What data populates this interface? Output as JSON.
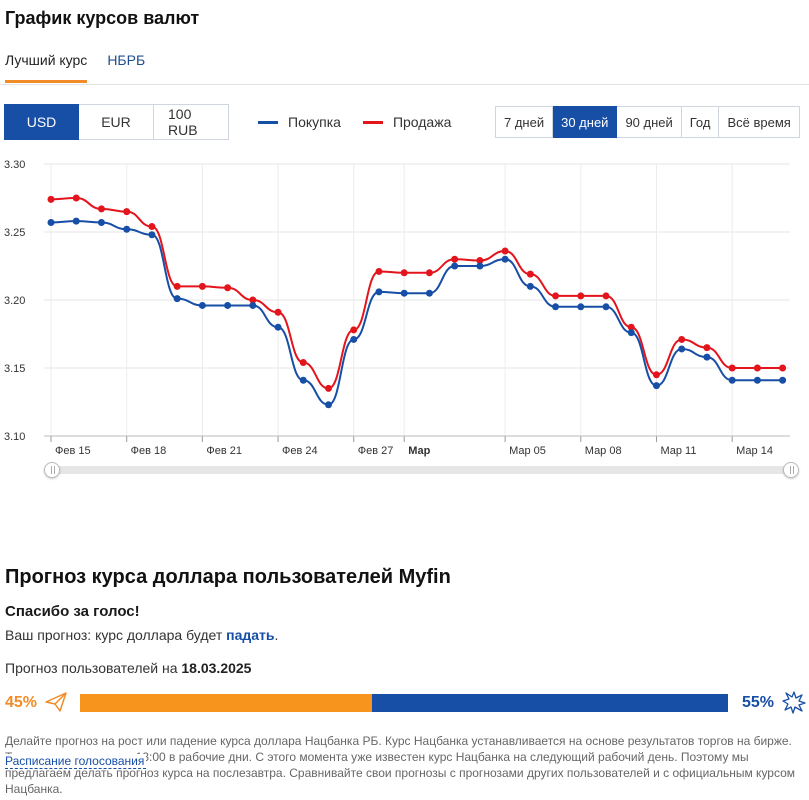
{
  "title": "График курсов валют",
  "tabs": [
    {
      "label": "Лучший курс",
      "active": true
    },
    {
      "label": "НБРБ",
      "active": false
    }
  ],
  "currencies": [
    {
      "label": "USD",
      "active": true
    },
    {
      "label": "EUR",
      "active": false
    },
    {
      "label": "100 RUB",
      "active": false
    }
  ],
  "legend": {
    "buy": {
      "label": "Покупка",
      "color": "#174ea6"
    },
    "sell": {
      "label": "Продажа",
      "color": "#e3141c"
    }
  },
  "ranges": [
    {
      "label": "7 дней",
      "active": false
    },
    {
      "label": "30 дней",
      "active": true
    },
    {
      "label": "90 дней",
      "active": false
    },
    {
      "label": "Год",
      "active": false
    },
    {
      "label": "Всё время",
      "active": false
    }
  ],
  "chart_data": {
    "type": "line",
    "ylim": [
      3.1,
      3.3
    ],
    "yticks": [
      "3.10",
      "3.15",
      "3.20",
      "3.25",
      "3.30"
    ],
    "xticks": [
      {
        "label": "Фев 15",
        "i": 0,
        "bold": false
      },
      {
        "label": "Фев 18",
        "i": 3,
        "bold": false
      },
      {
        "label": "Фев 21",
        "i": 6,
        "bold": false
      },
      {
        "label": "Фев 24",
        "i": 9,
        "bold": false
      },
      {
        "label": "Фев 27",
        "i": 12,
        "bold": false
      },
      {
        "label": "Мар",
        "i": 14,
        "bold": true
      },
      {
        "label": "Мар 05",
        "i": 18,
        "bold": false
      },
      {
        "label": "Мар 08",
        "i": 21,
        "bold": false
      },
      {
        "label": "Мар 11",
        "i": 24,
        "bold": false
      },
      {
        "label": "Мар 14",
        "i": 27,
        "bold": false
      }
    ],
    "series": [
      {
        "name": "Продажа",
        "color": "#e3141c",
        "values": [
          3.274,
          3.275,
          3.267,
          3.265,
          3.254,
          3.21,
          3.21,
          3.209,
          3.2,
          3.191,
          3.154,
          3.135,
          3.178,
          3.221,
          3.22,
          3.22,
          3.23,
          3.229,
          3.236,
          3.219,
          3.203,
          3.203,
          3.203,
          3.18,
          3.145,
          3.171,
          3.165,
          3.15,
          3.15,
          3.15
        ]
      },
      {
        "name": "Покупка",
        "color": "#174ea6",
        "values": [
          3.257,
          3.258,
          3.257,
          3.252,
          3.248,
          3.201,
          3.196,
          3.196,
          3.196,
          3.18,
          3.141,
          3.123,
          3.171,
          3.206,
          3.205,
          3.205,
          3.225,
          3.225,
          3.23,
          3.21,
          3.195,
          3.195,
          3.195,
          3.176,
          3.137,
          3.164,
          3.158,
          3.141,
          3.141,
          3.141
        ]
      }
    ]
  },
  "forecast": {
    "title": "Прогноз курса доллара пользователей Myfin",
    "thanks": "Спасибо за голос!",
    "your_prefix": "Ваш прогноз: курс доллара будет",
    "your_value": "падать",
    "your_suffix": ".",
    "users_prefix": "Прогноз пользователей на",
    "users_date": "18.03.2025",
    "up_pct": "45%",
    "down_pct": "55%",
    "up_share": 45,
    "down_share": 55,
    "up_icon": "paper-plane-icon",
    "down_icon": "explosion-icon",
    "disclaimer": "Делайте прогноз на рост или падение курса доллара Нацбанка РБ. Курс Нацбанка устанавливается на основе результатов торгов на бирже. Торги заканчиваются в 13:00 в рабочие дни. С этого момента уже известен курс Нацбанка на следующий рабочий день. Поэтому мы предлагаем делать прогноз курса на послезавтра. Сравнивайте свои прогнозы с прогнозами других пользователей и с официальным курсом Нацбанка.",
    "schedule_link": "Расписание голосования"
  }
}
